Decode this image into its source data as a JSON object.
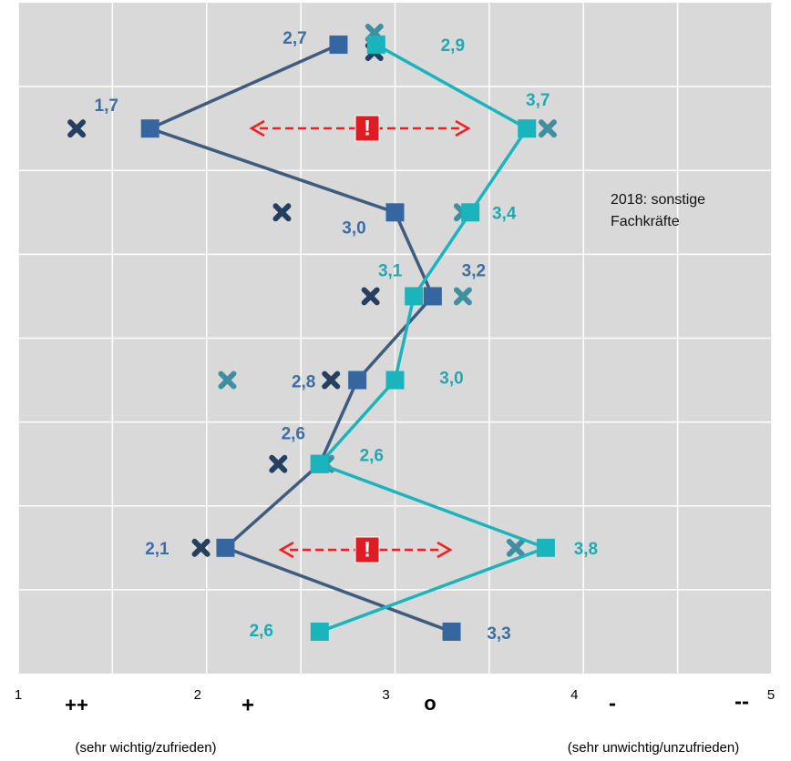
{
  "chart_data": {
    "type": "profile",
    "annotation": "2018: sonstige Fachkräfte",
    "xlim": [
      1,
      5
    ],
    "xticks": [
      1,
      2,
      3,
      4,
      5
    ],
    "xminor": [
      1.5,
      2.5,
      3.5,
      4.5
    ],
    "scale_symbols": [
      "++",
      "+",
      "o",
      "-",
      "--"
    ],
    "left_note": "(sehr wichtig/zufrieden)",
    "right_note": "(sehr unwichtig/unzufrieden)",
    "grid": true,
    "series": [
      {
        "color": "#3566a0",
        "line_color": "#3d5c7e",
        "label_color": "#3a6ea5",
        "values": [
          2.7,
          1.7,
          3.0,
          3.2,
          2.8,
          2.6,
          2.1,
          3.3
        ],
        "value_labels": [
          "2,7",
          "1,7",
          "3,0",
          "3,2",
          "2,8",
          "2,6",
          "2,1",
          "3,3"
        ]
      },
      {
        "color": "#1ab4bc",
        "line_color": "#1ab4bc",
        "label_color": "#1fa9b5",
        "values": [
          2.9,
          3.7,
          3.4,
          3.1,
          3.0,
          2.6,
          3.8,
          2.6
        ],
        "value_labels": [
          "2,9",
          "3,7",
          "3,4",
          "3,1",
          "3,0",
          "2,6",
          "3,8",
          "2,6"
        ]
      }
    ],
    "markers_2018": [
      {
        "color": "#253f5e",
        "values": [
          2.89,
          1.31,
          2.4,
          2.87,
          2.66,
          2.38,
          1.97,
          null
        ]
      },
      {
        "color": "#3f8fa0",
        "values": [
          2.89,
          3.81,
          3.36,
          3.36,
          2.11,
          2.63,
          3.64,
          null
        ]
      }
    ]
  }
}
